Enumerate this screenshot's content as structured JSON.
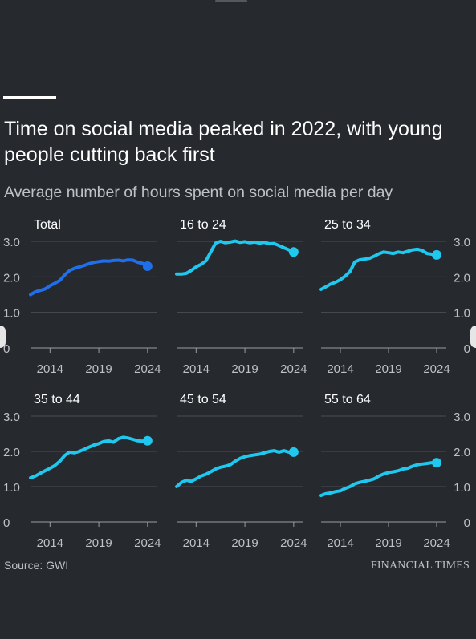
{
  "header": {
    "title": "Time on social media peaked in 2022, with young people cutting back first",
    "subtitle": "Average number of hours spent on social media per day"
  },
  "footer": {
    "source": "Source: GWI",
    "publisher": "FINANCIAL TIMES"
  },
  "colors": {
    "background": "#26292e",
    "gridline": "#4a4d53",
    "axis_text": "#bfc1c6",
    "total_line": "#1f6feb",
    "age_line": "#1ec8ef"
  },
  "chart_data": [
    {
      "type": "line",
      "title": "Total",
      "series_color": "#1f6feb",
      "ylim": [
        0,
        3
      ],
      "yticks": [
        "0",
        "1.0",
        "2.0",
        "3.0"
      ],
      "xlim": [
        2012,
        2025
      ],
      "xticks": [
        "2014",
        "2019",
        "2024"
      ],
      "grid": true,
      "x": [
        2012,
        2012.5,
        2013,
        2013.5,
        2014,
        2014.5,
        2015,
        2015.5,
        2016,
        2016.5,
        2017,
        2017.5,
        2018,
        2018.5,
        2019,
        2019.5,
        2020,
        2020.5,
        2021,
        2021.5,
        2022,
        2022.5,
        2023,
        2023.5,
        2024
      ],
      "values": [
        1.5,
        1.58,
        1.62,
        1.66,
        1.75,
        1.82,
        1.9,
        2.05,
        2.18,
        2.24,
        2.28,
        2.32,
        2.37,
        2.41,
        2.43,
        2.45,
        2.44,
        2.46,
        2.47,
        2.45,
        2.48,
        2.47,
        2.41,
        2.38,
        2.3
      ]
    },
    {
      "type": "line",
      "title": "16 to 24",
      "series_color": "#1ec8ef",
      "ylim": [
        0,
        3
      ],
      "xlim": [
        2012,
        2025
      ],
      "xticks": [
        "2014",
        "2019",
        "2024"
      ],
      "grid": true,
      "x": [
        2012,
        2012.5,
        2013,
        2013.5,
        2014,
        2014.5,
        2015,
        2015.5,
        2016,
        2016.5,
        2017,
        2017.5,
        2018,
        2018.5,
        2019,
        2019.5,
        2020,
        2020.5,
        2021,
        2021.5,
        2022,
        2022.5,
        2023,
        2023.5,
        2024
      ],
      "values": [
        2.08,
        2.08,
        2.1,
        2.18,
        2.28,
        2.35,
        2.45,
        2.7,
        2.95,
        3.0,
        2.96,
        2.98,
        3.01,
        2.97,
        2.99,
        2.96,
        2.98,
        2.95,
        2.97,
        2.93,
        2.94,
        2.88,
        2.82,
        2.76,
        2.7
      ]
    },
    {
      "type": "line",
      "title": "25 to 34",
      "series_color": "#1ec8ef",
      "ylim": [
        0,
        3
      ],
      "yticks_right": [
        "0",
        "1.0",
        "2.0",
        "3.0"
      ],
      "xlim": [
        2012,
        2025
      ],
      "xticks": [
        "2014",
        "2019",
        "2024"
      ],
      "grid": true,
      "x": [
        2012,
        2012.5,
        2013,
        2013.5,
        2014,
        2014.5,
        2015,
        2015.5,
        2016,
        2016.5,
        2017,
        2017.5,
        2018,
        2018.5,
        2019,
        2019.5,
        2020,
        2020.5,
        2021,
        2021.5,
        2022,
        2022.5,
        2023,
        2023.5,
        2024
      ],
      "values": [
        1.65,
        1.72,
        1.8,
        1.85,
        1.92,
        2.02,
        2.15,
        2.42,
        2.48,
        2.5,
        2.52,
        2.58,
        2.65,
        2.7,
        2.68,
        2.66,
        2.7,
        2.68,
        2.72,
        2.76,
        2.78,
        2.74,
        2.66,
        2.64,
        2.62
      ]
    },
    {
      "type": "line",
      "title": "35 to 44",
      "series_color": "#1ec8ef",
      "ylim": [
        0,
        3
      ],
      "yticks": [
        "0",
        "1.0",
        "2.0",
        "3.0"
      ],
      "xlim": [
        2012,
        2025
      ],
      "xticks": [
        "2014",
        "2019",
        "2024"
      ],
      "grid": true,
      "x": [
        2012,
        2012.5,
        2013,
        2013.5,
        2014,
        2014.5,
        2015,
        2015.5,
        2016,
        2016.5,
        2017,
        2017.5,
        2018,
        2018.5,
        2019,
        2019.5,
        2020,
        2020.5,
        2021,
        2021.5,
        2022,
        2022.5,
        2023,
        2023.5,
        2024
      ],
      "values": [
        1.25,
        1.3,
        1.38,
        1.45,
        1.52,
        1.6,
        1.72,
        1.88,
        1.98,
        1.96,
        2.0,
        2.06,
        2.12,
        2.18,
        2.22,
        2.28,
        2.3,
        2.26,
        2.36,
        2.4,
        2.38,
        2.34,
        2.3,
        2.29,
        2.3
      ]
    },
    {
      "type": "line",
      "title": "45 to 54",
      "series_color": "#1ec8ef",
      "ylim": [
        0,
        3
      ],
      "xlim": [
        2012,
        2025
      ],
      "xticks": [
        "2014",
        "2019",
        "2024"
      ],
      "grid": true,
      "x": [
        2012,
        2012.5,
        2013,
        2013.5,
        2014,
        2014.5,
        2015,
        2015.5,
        2016,
        2016.5,
        2017,
        2017.5,
        2018,
        2018.5,
        2019,
        2019.5,
        2020,
        2020.5,
        2021,
        2021.5,
        2022,
        2022.5,
        2023,
        2023.5,
        2024
      ],
      "values": [
        1.0,
        1.12,
        1.18,
        1.15,
        1.22,
        1.3,
        1.35,
        1.42,
        1.5,
        1.55,
        1.58,
        1.62,
        1.72,
        1.8,
        1.85,
        1.88,
        1.9,
        1.92,
        1.96,
        2.0,
        2.02,
        1.98,
        2.02,
        1.98,
        1.98
      ]
    },
    {
      "type": "line",
      "title": "55 to 64",
      "series_color": "#1ec8ef",
      "ylim": [
        0,
        3
      ],
      "yticks_right": [
        "0",
        "1.0",
        "2.0",
        "3.0"
      ],
      "xlim": [
        2012,
        2025
      ],
      "xticks": [
        "2014",
        "2019",
        "2024"
      ],
      "grid": true,
      "x": [
        2012,
        2012.5,
        2013,
        2013.5,
        2014,
        2014.5,
        2015,
        2015.5,
        2016,
        2016.5,
        2017,
        2017.5,
        2018,
        2018.5,
        2019,
        2019.5,
        2020,
        2020.5,
        2021,
        2021.5,
        2022,
        2022.5,
        2023,
        2023.5,
        2024
      ],
      "values": [
        0.75,
        0.8,
        0.82,
        0.86,
        0.88,
        0.95,
        1.0,
        1.08,
        1.12,
        1.15,
        1.18,
        1.22,
        1.3,
        1.36,
        1.4,
        1.42,
        1.45,
        1.5,
        1.52,
        1.58,
        1.62,
        1.64,
        1.66,
        1.68,
        1.68
      ]
    }
  ]
}
